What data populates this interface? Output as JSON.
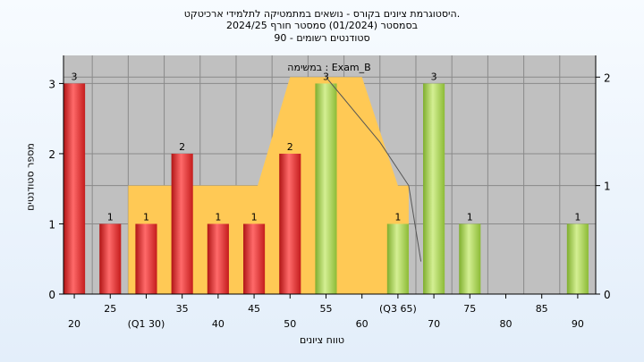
{
  "title_lines": [
    "היסטוגרמת ציונים בקורס - נושאים במתמטיקה לתלמידי ארכיטקט.",
    "בסמסטר  (01/2024)  סמסטר חורף  2024/25",
    "סטודנטים רשומים - 90"
  ],
  "chart_data": {
    "type": "bar",
    "annotation": "במשימה : Exam_B",
    "xlabel": "טווח ציונים",
    "ylabel": "מספר סטודנטים",
    "x": [
      20,
      25,
      30,
      35,
      40,
      45,
      50,
      55,
      60,
      65,
      70,
      75,
      80,
      85,
      90
    ],
    "x_tick_labels": [
      "20",
      "25",
      "(Q1 30)",
      "35",
      "40",
      "45",
      "50",
      "55",
      "60",
      "(Q3 65)",
      "70",
      "75",
      "80",
      "85",
      "90"
    ],
    "values": [
      3,
      1,
      1,
      2,
      1,
      1,
      2,
      3,
      0,
      1,
      3,
      1,
      0,
      0,
      1
    ],
    "value_labels": [
      "3",
      "1",
      "1",
      "2",
      "1",
      "1",
      "2",
      "3",
      "",
      "1",
      "3",
      "1",
      "",
      "",
      "1"
    ],
    "bar_colors": [
      "red",
      "red",
      "red",
      "red",
      "red",
      "red",
      "red",
      "green",
      "",
      "green",
      "green",
      "green",
      "",
      "",
      "green"
    ],
    "ylim": [
      0,
      3.4
    ],
    "y_ticks": [
      0,
      1,
      2,
      3
    ],
    "y2_ticks": [
      0,
      1,
      2
    ],
    "y2lim": [
      0,
      2.2
    ],
    "grid": true,
    "box_plot": {
      "color": "#ffc955",
      "steps": [
        {
          "x0": 27.5,
          "x1": 45.5,
          "y": 1.0
        },
        {
          "x0": 45.5,
          "x1": 50.0,
          "y": 1.0,
          "y1": 2.0
        },
        {
          "x0": 50.0,
          "x1": 60.0,
          "y": 2.0
        },
        {
          "x0": 60.0,
          "x1": 65.0,
          "y": 2.0,
          "y1": 1.0
        },
        {
          "x0": 65.0,
          "x1": 66.5,
          "y": 1.0
        }
      ]
    },
    "trend_line": [
      [
        55,
        2.0
      ],
      [
        62.5,
        1.4
      ],
      [
        66.5,
        1.0
      ],
      [
        68.2,
        0.3
      ]
    ],
    "colors": {
      "red": "#e53030",
      "green": "#9fcc48",
      "plot_bg": "#c0c0c0"
    }
  }
}
